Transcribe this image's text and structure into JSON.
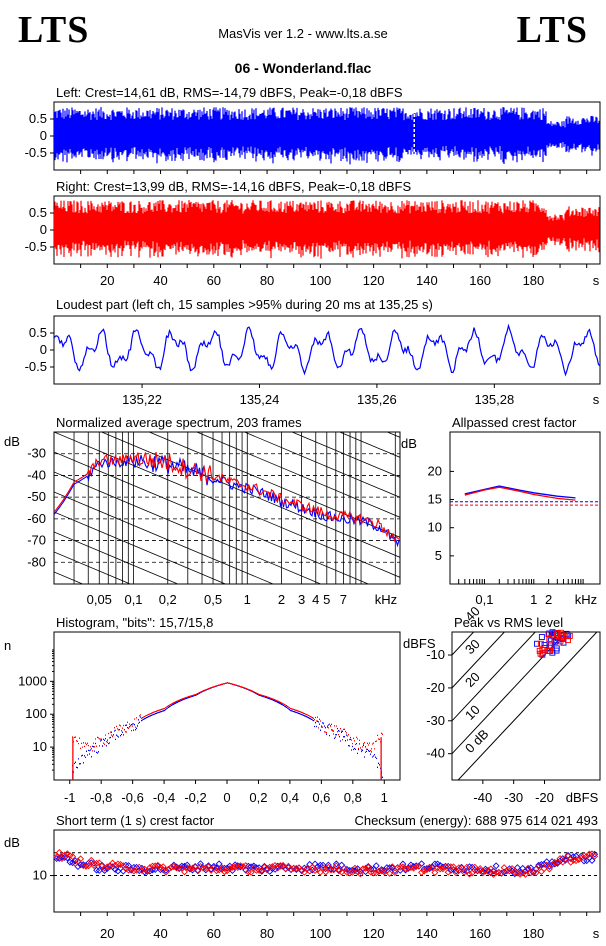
{
  "header": {
    "logo_left": "LTS",
    "logo_right": "LTS",
    "app_title": "MasVis ver 1.2 - www.lts.a.se",
    "file_title": "06 - Wonderland.flac"
  },
  "colors": {
    "left": "#0000ff",
    "right": "#ff0000",
    "text": "#000000"
  },
  "chart_data": [
    {
      "id": "left_waveform",
      "type": "area",
      "title": "Left: Crest=14,61 dB, RMS=-14,79 dBFS, Peak=-0,18 dBFS",
      "ylim": [
        -1,
        1
      ],
      "xlim": [
        0,
        205
      ],
      "y_ticks": [
        "0.5",
        "0",
        "-0.5"
      ],
      "series": [
        {
          "color": "#0000ff",
          "envelope_segments": [
            {
              "x": [
                0,
                185
              ],
              "amplitude": 0.85
            },
            {
              "x": [
                185,
                192
              ],
              "amplitude": 0.45
            },
            {
              "x": [
                192,
                205
              ],
              "amplitude": 0.6
            }
          ],
          "loudest_marker_x": 135.25
        }
      ]
    },
    {
      "id": "right_waveform",
      "type": "area",
      "title": "Right: Crest=13,99 dB, RMS=-14,16 dBFS, Peak=-0,18 dBFS",
      "ylim": [
        -1,
        1
      ],
      "xlim": [
        0,
        205
      ],
      "y_ticks": [
        "0.5",
        "0",
        "-0.5"
      ],
      "x_ticks": [
        "20",
        "40",
        "60",
        "80",
        "100",
        "120",
        "140",
        "160",
        "180"
      ],
      "x_unit": "s",
      "series": [
        {
          "color": "#ff0000",
          "envelope_segments": [
            {
              "x": [
                0,
                185
              ],
              "amplitude": 0.88
            },
            {
              "x": [
                185,
                192
              ],
              "amplitude": 0.5
            },
            {
              "x": [
                192,
                205
              ],
              "amplitude": 0.7
            }
          ]
        }
      ]
    },
    {
      "id": "loudest_part",
      "type": "line",
      "title": "Loudest part (left  ch, 15 samples >95% during 20 ms at 135,25 s)",
      "ylim": [
        -1,
        1
      ],
      "xlim": [
        135.205,
        135.298
      ],
      "y_ticks": [
        "0.5",
        "0",
        "-0.5"
      ],
      "x_ticks": [
        "135,22",
        "135,24",
        "135,26",
        "135,28"
      ],
      "x_unit": "s",
      "series": [
        {
          "color": "#0000ff",
          "amplitude": 0.75
        }
      ]
    },
    {
      "id": "avg_spectrum",
      "type": "line",
      "title": "Normalized average spectrum, 203 frames",
      "ylabel": "dB",
      "x_unit": "kHz",
      "x_ticks": [
        "0,05",
        "0,1",
        "0,2",
        "0,5",
        "1",
        "2",
        "3",
        "4",
        "5",
        "7",
        "kHz"
      ],
      "y_ticks": [
        "-30",
        "-40",
        "-50",
        "-60",
        "-70",
        "-80"
      ],
      "ylim": [
        -90,
        -20
      ],
      "series": [
        {
          "name": "Left",
          "color": "#0000ff",
          "x": [
            0.02,
            0.03,
            0.04,
            0.05,
            0.07,
            0.1,
            0.15,
            0.2,
            0.3,
            0.5,
            0.7,
            1,
            1.5,
            2,
            3,
            4,
            5,
            7,
            10,
            15,
            20
          ],
          "y": [
            -58,
            -44,
            -40,
            -34,
            -34,
            -33,
            -34,
            -35,
            -38,
            -41,
            -44,
            -46,
            -49,
            -52,
            -55,
            -57,
            -59,
            -60,
            -61,
            -64,
            -71
          ]
        },
        {
          "name": "Right",
          "color": "#ff0000",
          "x": [
            0.02,
            0.03,
            0.04,
            0.05,
            0.07,
            0.1,
            0.15,
            0.2,
            0.3,
            0.5,
            0.7,
            1,
            1.5,
            2,
            3,
            4,
            5,
            7,
            10,
            15,
            20
          ],
          "y": [
            -57,
            -43,
            -39,
            -33,
            -33,
            -32,
            -33,
            -34,
            -37,
            -40,
            -43,
            -45,
            -48,
            -51,
            -54,
            -56,
            -58,
            -59,
            -60,
            -63,
            -70
          ]
        }
      ]
    },
    {
      "id": "allpassed_crest",
      "type": "line",
      "title": "Allpassed crest factor",
      "ylabel": "dB",
      "x_ticks": [
        "0,1",
        "1",
        "2",
        "kHz"
      ],
      "y_ticks": [
        "20",
        "15",
        "10",
        "5"
      ],
      "ylim": [
        0,
        27
      ],
      "series": [
        {
          "name": "Left",
          "color": "#0000ff",
          "x": [
            0.04,
            0.1,
            0.2,
            0.5,
            1,
            3,
            7
          ],
          "y": [
            16,
            16.8,
            17.4,
            16.7,
            16.2,
            15.6,
            15.3
          ],
          "reference": 14.6
        },
        {
          "name": "Right",
          "color": "#ff0000",
          "x": [
            0.04,
            0.1,
            0.2,
            0.5,
            1,
            3,
            7
          ],
          "y": [
            15.8,
            16.7,
            17.2,
            16.5,
            15.9,
            15.2,
            14.9
          ],
          "reference": 14.0
        }
      ]
    },
    {
      "id": "histogram",
      "type": "line",
      "title": "Histogram, \"bits\": 15,7/15,8",
      "ylabel": "n",
      "x_ticks": [
        "-1",
        "-0,8",
        "-0,6",
        "-0,4",
        "-0,2",
        "0",
        "0,2",
        "0,4",
        "0,6",
        "0,8",
        "1"
      ],
      "y_ticks": [
        "1000",
        "100",
        "10"
      ],
      "xlim": [
        -1.1,
        1.1
      ],
      "series": [
        {
          "name": "Left",
          "color": "#0000ff",
          "x": [
            -0.98,
            -0.9,
            -0.8,
            -0.6,
            -0.4,
            -0.2,
            0,
            0.2,
            0.4,
            0.6,
            0.8,
            0.9,
            0.98
          ],
          "y": [
            2,
            6,
            12,
            40,
            130,
            380,
            900,
            380,
            130,
            40,
            12,
            6,
            2
          ]
        },
        {
          "name": "Right",
          "color": "#ff0000",
          "x": [
            -0.98,
            -0.9,
            -0.8,
            -0.6,
            -0.4,
            -0.2,
            0,
            0.2,
            0.4,
            0.6,
            0.8,
            0.9,
            0.98
          ],
          "y": [
            20,
            9,
            16,
            48,
            150,
            400,
            900,
            400,
            150,
            48,
            16,
            9,
            20
          ]
        }
      ]
    },
    {
      "id": "peak_vs_rms",
      "type": "scatter",
      "title": "Peak vs RMS level",
      "ylabel": "dBFS",
      "xlabel": "dBFS",
      "x_ticks": [
        "-40",
        "-30",
        "-20"
      ],
      "y_ticks": [
        "-10",
        "-20",
        "-30",
        "-40"
      ],
      "xlim": [
        -50,
        -2
      ],
      "ylim": [
        -48,
        -3
      ],
      "crest_lines": [
        "40",
        "30",
        "20",
        "10",
        "0 dB"
      ],
      "series": [
        {
          "name": "Left",
          "color": "#0000ff",
          "x": [
            -21,
            -19,
            -18,
            -17,
            -16,
            -15,
            -16,
            -18,
            -14
          ],
          "y": [
            -8,
            -6,
            -4,
            -5,
            -3,
            -4,
            -7,
            -9,
            -6
          ]
        },
        {
          "name": "Right",
          "color": "#ff0000",
          "x": [
            -20,
            -18,
            -17,
            -16,
            -15,
            -14,
            -19,
            -13,
            -16
          ],
          "y": [
            -7,
            -5,
            -4,
            -3,
            -4,
            -5,
            -8,
            -6,
            -9
          ]
        }
      ]
    },
    {
      "id": "short_term_crest",
      "type": "scatter",
      "title": "Short term (1 s) crest factor",
      "checksum_label": "Checksum (energy):",
      "checksum_value": "688 975 614 021 493",
      "ylabel": "dB",
      "y_ticks": [
        "10"
      ],
      "xlim": [
        0,
        205
      ],
      "x_ticks": [
        "20",
        "40",
        "60",
        "80",
        "100",
        "120",
        "140",
        "160",
        "180"
      ],
      "x_unit": "s",
      "series": [
        {
          "name": "Left",
          "color": "#0000ff",
          "x": [
            3,
            10,
            20,
            40,
            60,
            80,
            100,
            120,
            140,
            160,
            180,
            190,
            200
          ],
          "y": [
            14,
            12.5,
            11.5,
            11.5,
            12,
            11.5,
            12,
            11.5,
            12,
            11.5,
            11,
            13.5,
            14
          ]
        },
        {
          "name": "Right",
          "color": "#ff0000",
          "x": [
            3,
            10,
            20,
            40,
            60,
            80,
            100,
            120,
            140,
            160,
            180,
            190,
            200
          ],
          "y": [
            14.5,
            13,
            12,
            11.5,
            11.5,
            11.5,
            11.5,
            11,
            11.5,
            11,
            11,
            13,
            14.5
          ]
        }
      ]
    }
  ]
}
